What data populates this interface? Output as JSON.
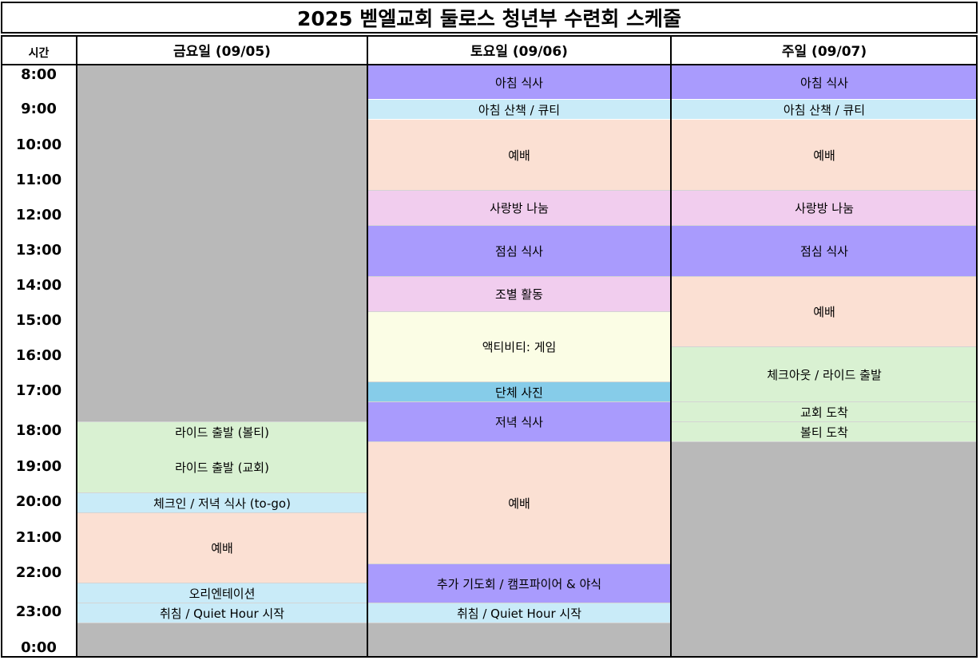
{
  "title": "2025 벧엘교회 둘로스 청년부 수련회 스케줄",
  "header": {
    "time_col": "시간",
    "days": [
      "금요일 (09/05)",
      "토요일 (09/06)",
      "주일 (09/07)"
    ]
  },
  "times": [
    "8:00",
    "9:00",
    "10:00",
    "11:00",
    "12:00",
    "13:00",
    "14:00",
    "15:00",
    "16:00",
    "17:00",
    "18:00",
    "19:00",
    "20:00",
    "21:00",
    "22:00",
    "23:00",
    "0:00"
  ],
  "colors": {
    "meal": "#a99bfd",
    "light_blue": "#c9ebf8",
    "worship": "#fbe0d3",
    "pink": "#f1cdee",
    "green": "#d9f1d2",
    "yellow": "#fbfde5",
    "photo_blue": "#86cce9",
    "gray": "#b9b9b9"
  },
  "friday": {
    "ride_boltee": "라이드 출발 (볼티)",
    "ride_church": "라이드 출발 (교회)",
    "checkin": "체크인 / 저녁 식사 (to-go)",
    "worship": "예배",
    "orientation": "오리엔테이션",
    "quiet_hour": "취침 / Quiet Hour 시작"
  },
  "saturday": {
    "breakfast": "아침 식사",
    "walk_qt": "아침 산책 / 큐티",
    "worship_am": "예배",
    "small_group": "사랑방 나눔",
    "lunch": "점심 식사",
    "team_activity": "조별 활동",
    "game": "액티비티: 게임",
    "group_photo": "단체 사진",
    "dinner": "저녁 식사",
    "worship_pm": "예배",
    "prayer_campfire": "추가 기도회 / 캠프파이어 & 야식",
    "quiet_hour": "취침 / Quiet Hour 시작"
  },
  "sunday": {
    "breakfast": "아침 식사",
    "walk_qt": "아침 산책 / 큐티",
    "worship_am": "예배",
    "small_group": "사랑방 나눔",
    "lunch": "점심 식사",
    "worship_pm": "예배",
    "checkout": "체크아웃 / 라이드 출발",
    "arrive_church": "교회 도착",
    "arrive_boltee": "볼티 도착"
  }
}
